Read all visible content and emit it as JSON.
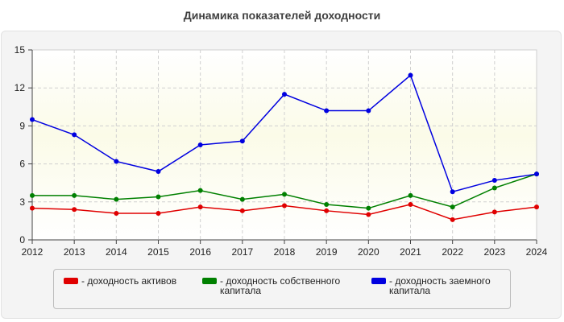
{
  "title": "Динамика показателей доходности",
  "chart_data": {
    "type": "line",
    "x": [
      "2012",
      "2013",
      "2014",
      "2015",
      "2016",
      "2017",
      "2018",
      "2019",
      "2020",
      "2021",
      "2022",
      "2023",
      "2024"
    ],
    "ylim": [
      0,
      15
    ],
    "yticks": [
      0,
      3,
      6,
      9,
      12,
      15
    ],
    "grid": true,
    "legend_position": "bottom",
    "series": [
      {
        "name": "- доходность активов",
        "color": "#e00000",
        "values": [
          2.5,
          2.4,
          2.1,
          2.1,
          2.6,
          2.3,
          2.7,
          2.3,
          2.0,
          2.8,
          1.6,
          2.2,
          2.6
        ]
      },
      {
        "name": "- доходность собственного капитала",
        "color": "#008000",
        "values": [
          3.5,
          3.5,
          3.2,
          3.4,
          3.9,
          3.2,
          3.6,
          2.8,
          2.5,
          3.5,
          2.6,
          4.1,
          5.2
        ]
      },
      {
        "name": "- доходность заемного капитала",
        "color": "#0000e0",
        "values": [
          9.5,
          8.3,
          6.2,
          5.4,
          7.5,
          7.8,
          11.5,
          10.2,
          10.2,
          13.0,
          3.8,
          4.7,
          5.2
        ]
      }
    ]
  }
}
